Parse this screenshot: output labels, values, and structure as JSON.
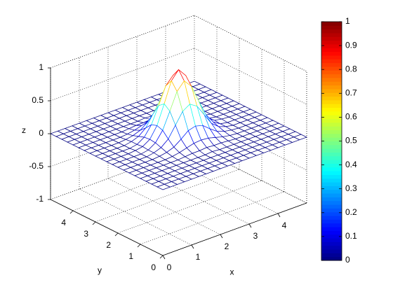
{
  "chart_data": {
    "type": "mesh",
    "xlabel": "x",
    "ylabel": "y",
    "zlabel": "z",
    "x": [
      0,
      0.25,
      0.5,
      0.75,
      1,
      1.25,
      1.5,
      1.75,
      2,
      2.25,
      2.5,
      2.75,
      3,
      3.25,
      3.5,
      3.75,
      4,
      4.25,
      4.5,
      4.75,
      5
    ],
    "y": [
      0,
      0.25,
      0.5,
      0.75,
      1,
      1.25,
      1.5,
      1.75,
      2,
      2.25,
      2.5,
      2.75,
      3,
      3.25,
      3.5,
      3.75,
      4,
      4.25,
      4.5,
      4.75,
      5
    ],
    "z": [
      [
        0,
        0,
        0,
        0,
        0,
        0,
        0,
        0,
        0,
        0,
        0,
        0,
        0,
        0,
        0,
        0,
        0,
        0,
        0,
        0,
        0
      ],
      [
        0,
        0,
        0,
        0,
        0,
        0,
        0,
        0,
        0,
        0,
        0,
        0,
        0,
        0,
        0,
        0,
        0,
        0,
        0,
        0,
        0
      ],
      [
        0,
        0,
        0,
        0,
        0,
        0,
        0,
        0,
        0,
        0,
        0,
        0,
        0,
        0,
        0,
        0,
        0,
        0,
        0,
        0,
        0
      ],
      [
        0,
        0,
        0,
        0,
        0,
        0,
        0,
        0,
        0,
        0,
        0,
        0,
        0,
        0,
        0,
        0,
        0,
        0,
        0,
        0,
        0
      ],
      [
        0,
        0,
        0,
        0,
        0,
        0,
        0,
        0,
        0,
        0,
        0.01,
        0,
        0,
        0,
        0,
        0,
        0,
        0,
        0,
        0,
        0
      ],
      [
        0,
        0,
        0,
        0,
        0,
        0,
        0,
        0.01,
        0.02,
        0.02,
        0.03,
        0.02,
        0.02,
        0.01,
        0,
        0,
        0,
        0,
        0,
        0,
        0
      ],
      [
        0,
        0,
        0,
        0,
        0,
        0,
        0.01,
        0.03,
        0.06,
        0.09,
        0.1,
        0.09,
        0.06,
        0.03,
        0.01,
        0,
        0,
        0,
        0,
        0,
        0
      ],
      [
        0,
        0,
        0,
        0,
        0,
        0.01,
        0.03,
        0.07,
        0.15,
        0.24,
        0.27,
        0.24,
        0.15,
        0.07,
        0.03,
        0.01,
        0,
        0,
        0,
        0,
        0
      ],
      [
        0,
        0,
        0,
        0,
        0,
        0.02,
        0.06,
        0.15,
        0.32,
        0.49,
        0.56,
        0.49,
        0.32,
        0.15,
        0.06,
        0.02,
        0,
        0,
        0,
        0,
        0
      ],
      [
        0,
        0,
        0,
        0,
        0,
        0.02,
        0.09,
        0.24,
        0.49,
        0.75,
        0.87,
        0.75,
        0.49,
        0.24,
        0.09,
        0.02,
        0,
        0,
        0,
        0,
        0
      ],
      [
        0,
        0,
        0,
        0,
        0.01,
        0.03,
        0.1,
        0.27,
        0.56,
        0.87,
        1,
        0.87,
        0.56,
        0.27,
        0.1,
        0.03,
        0.01,
        0,
        0,
        0,
        0
      ],
      [
        0,
        0,
        0,
        0,
        0,
        0.02,
        0.09,
        0.24,
        0.49,
        0.75,
        0.87,
        0.75,
        0.49,
        0.24,
        0.09,
        0.02,
        0,
        0,
        0,
        0,
        0
      ],
      [
        0,
        0,
        0,
        0,
        0,
        0.02,
        0.06,
        0.15,
        0.32,
        0.49,
        0.56,
        0.49,
        0.32,
        0.15,
        0.06,
        0.02,
        0,
        0,
        0,
        0,
        0
      ],
      [
        0,
        0,
        0,
        0,
        0,
        0.01,
        0.03,
        0.07,
        0.15,
        0.24,
        0.27,
        0.24,
        0.15,
        0.07,
        0.03,
        0.01,
        0,
        0,
        0,
        0,
        0
      ],
      [
        0,
        0,
        0,
        0,
        0,
        0,
        0.01,
        0.03,
        0.06,
        0.09,
        0.1,
        0.09,
        0.06,
        0.03,
        0.01,
        0,
        0,
        0,
        0,
        0,
        0
      ],
      [
        0,
        0,
        0,
        0,
        0,
        0,
        0,
        0.01,
        0.02,
        0.02,
        0.03,
        0.02,
        0.02,
        0.01,
        0,
        0,
        0,
        0,
        0,
        0,
        0
      ],
      [
        0,
        0,
        0,
        0,
        0,
        0,
        0,
        0,
        0,
        0,
        0.01,
        0,
        0,
        0,
        0,
        0,
        0,
        0,
        0,
        0,
        0
      ],
      [
        0,
        0,
        0,
        0,
        0,
        0,
        0,
        0,
        0,
        0,
        0,
        0,
        0,
        0,
        0,
        0,
        0,
        0,
        0,
        0,
        0
      ],
      [
        0,
        0,
        0,
        0,
        0,
        0,
        0,
        0,
        0,
        0,
        0,
        0,
        0,
        0,
        0,
        0,
        0,
        0,
        0,
        0,
        0
      ],
      [
        0,
        0,
        0,
        0,
        0,
        0,
        0,
        0,
        0,
        0,
        0,
        0,
        0,
        0,
        0,
        0,
        0,
        0,
        0,
        0,
        0
      ],
      [
        0,
        0,
        0,
        0,
        0,
        0,
        0,
        0,
        0,
        0,
        0,
        0,
        0,
        0,
        0,
        0,
        0,
        0,
        0,
        0,
        0
      ]
    ],
    "xlim": [
      0,
      5
    ],
    "ylim": [
      0,
      5
    ],
    "zlim": [
      -1,
      1
    ],
    "xticks": [
      0,
      1,
      2,
      3,
      4
    ],
    "yticks": [
      0,
      1,
      2,
      3,
      4
    ],
    "zticks": [
      -1,
      -0.5,
      0,
      0.5,
      1
    ],
    "grid": true,
    "colormap": "jet",
    "colorbar": {
      "clim": [
        0,
        1
      ],
      "ticks": [
        0,
        0.1,
        0.2,
        0.3,
        0.4,
        0.5,
        0.6,
        0.7,
        0.8,
        0.9,
        1
      ]
    }
  }
}
